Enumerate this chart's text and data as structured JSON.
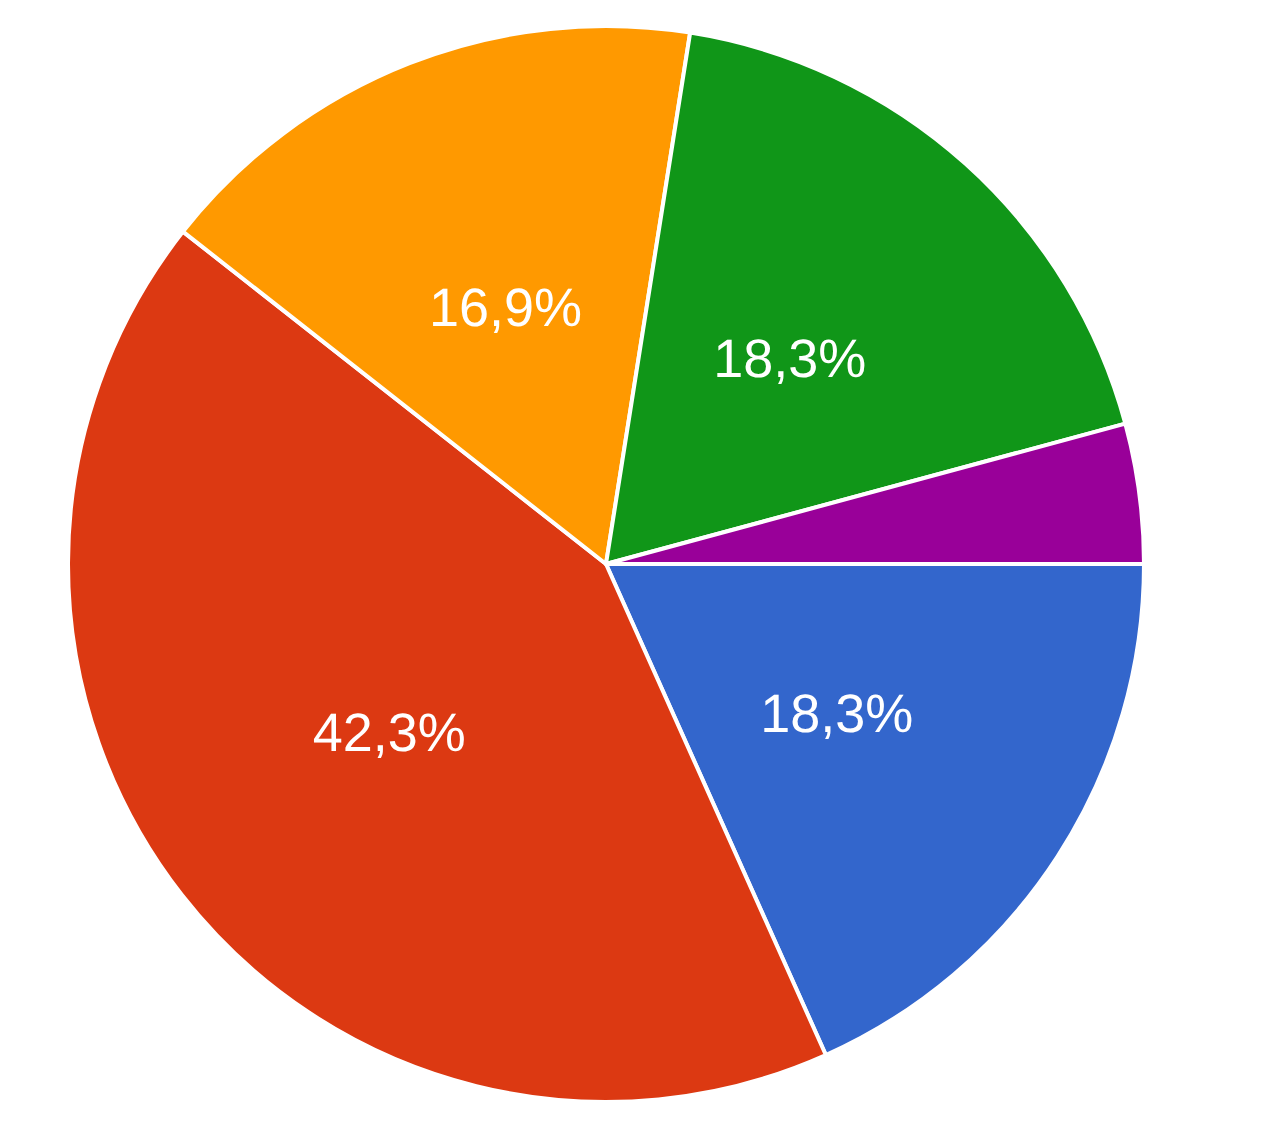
{
  "chart_data": {
    "type": "pie",
    "categories": [
      null,
      null,
      null,
      null,
      null
    ],
    "values": [
      18.3,
      42.3,
      16.9,
      18.3,
      4.2
    ],
    "colors": [
      "#3366cc",
      "#dc3912",
      "#ff9900",
      "#109618",
      "#990099"
    ],
    "value_labels": [
      "18,3%",
      "42,3%",
      "16,9%",
      "18,3%",
      null
    ]
  }
}
